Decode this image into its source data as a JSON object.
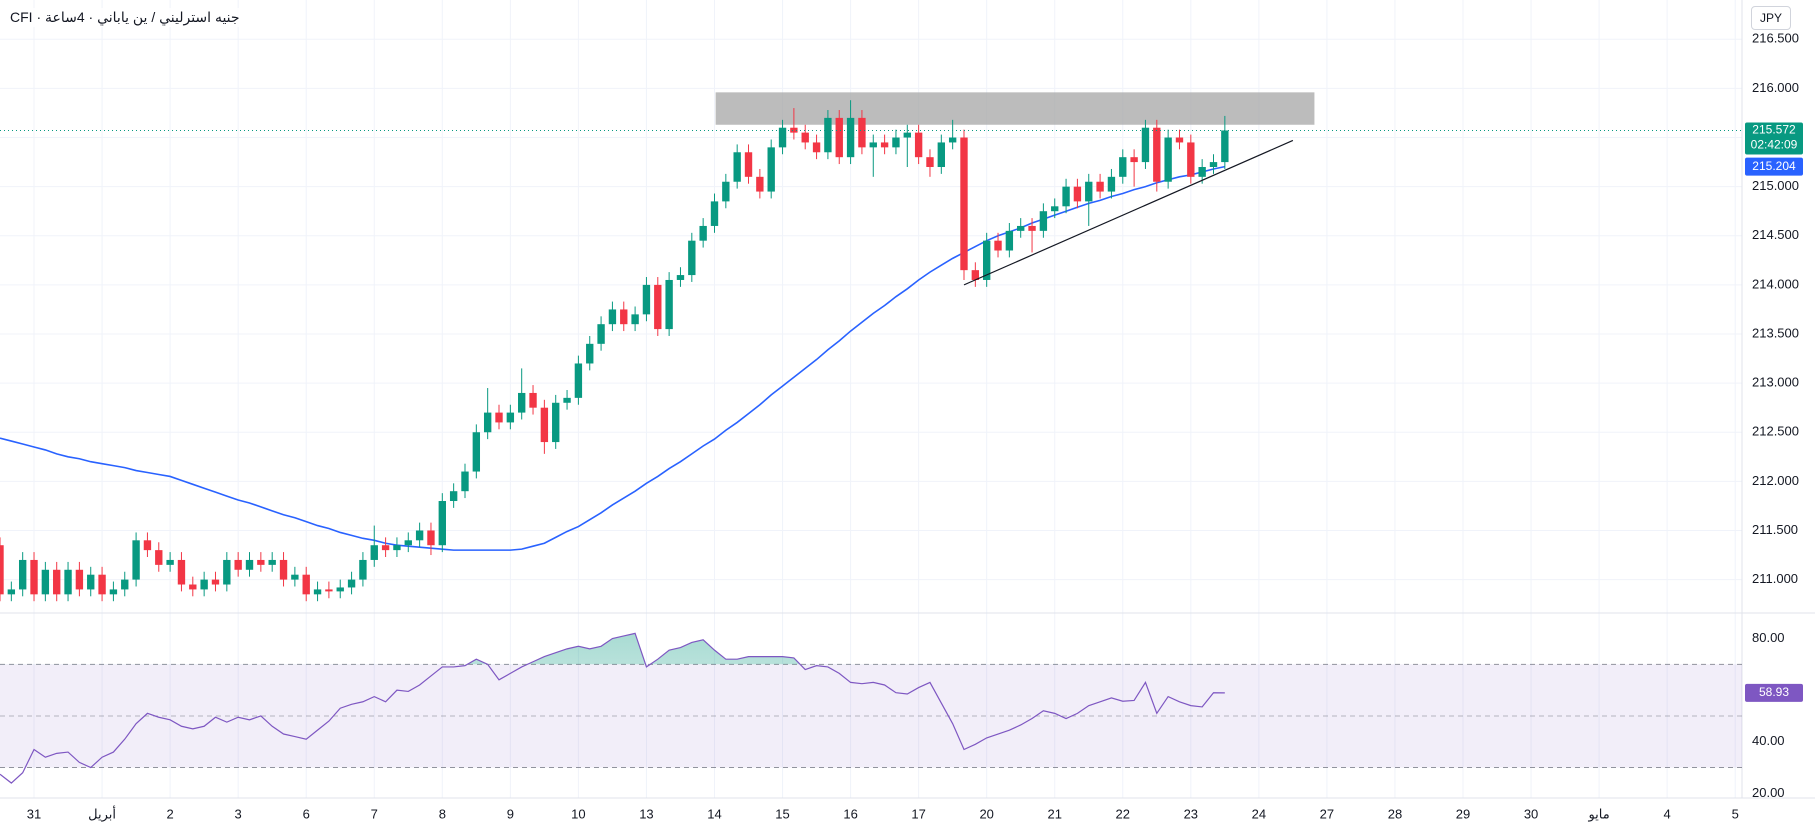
{
  "chart_data": {
    "type": "candlestick",
    "title": "جنيه استرليني / ين ياباني · 4ساعة · CFI",
    "currency": "JPY",
    "countdown": "02:42:09",
    "colors": {
      "up": "#089981",
      "down": "#f23645"
    },
    "grid": true,
    "xlim": [
      0,
      153.6
    ],
    "ylim": [
      210.66,
      216.9
    ],
    "yticks": [
      {
        "value": 211,
        "label": "211.000"
      },
      {
        "value": 211.5,
        "label": "211.500"
      },
      {
        "value": 212,
        "label": "212.000"
      },
      {
        "value": 212.5,
        "label": "212.500"
      },
      {
        "value": 213,
        "label": "213.000"
      },
      {
        "value": 213.5,
        "label": "213.500"
      },
      {
        "value": 214,
        "label": "214.000"
      },
      {
        "value": 214.5,
        "label": "214.500"
      },
      {
        "value": 215,
        "label": "215.000"
      },
      {
        "value": 215.5,
        "label": "215.500"
      },
      {
        "value": 216,
        "label": "216.000"
      },
      {
        "value": 216.5,
        "label": "216.500"
      }
    ],
    "xticks": [
      {
        "value": 3,
        "label": "31"
      },
      {
        "value": 9,
        "label": "أبريل"
      },
      {
        "value": 15,
        "label": "2"
      },
      {
        "value": 21,
        "label": "3"
      },
      {
        "value": 27,
        "label": "6"
      },
      {
        "value": 33,
        "label": "7"
      },
      {
        "value": 39,
        "label": "8"
      },
      {
        "value": 45,
        "label": "9"
      },
      {
        "value": 51,
        "label": "10"
      },
      {
        "value": 57,
        "label": "13"
      },
      {
        "value": 63,
        "label": "14"
      },
      {
        "value": 69,
        "label": "15"
      },
      {
        "value": 75,
        "label": "16"
      },
      {
        "value": 81,
        "label": "17"
      },
      {
        "value": 87,
        "label": "20"
      },
      {
        "value": 93,
        "label": "21"
      },
      {
        "value": 99,
        "label": "22"
      },
      {
        "value": 105,
        "label": "23"
      },
      {
        "value": 111,
        "label": "24"
      },
      {
        "value": 117,
        "label": "27"
      },
      {
        "value": 123,
        "label": "28"
      },
      {
        "value": 129,
        "label": "29"
      },
      {
        "value": 135,
        "label": "30"
      },
      {
        "value": 141,
        "label": "مايو"
      },
      {
        "value": 147,
        "label": "4"
      },
      {
        "value": 153,
        "label": "5"
      }
    ],
    "x": [
      0,
      1,
      2,
      3,
      4,
      5,
      6,
      7,
      8,
      9,
      10,
      11,
      12,
      13,
      14,
      15,
      16,
      17,
      18,
      19,
      20,
      21,
      22,
      23,
      24,
      25,
      26,
      27,
      28,
      29,
      30,
      31,
      32,
      33,
      34,
      35,
      36,
      37,
      38,
      39,
      40,
      41,
      42,
      43,
      44,
      45,
      46,
      47,
      48,
      49,
      50,
      51,
      52,
      53,
      54,
      55,
      56,
      57,
      58,
      59,
      60,
      61,
      62,
      63,
      64,
      65,
      66,
      67,
      68,
      69,
      70,
      71,
      72,
      73,
      74,
      75,
      76,
      77,
      78,
      79,
      80,
      81,
      82,
      83,
      84,
      85,
      86,
      87,
      88,
      89,
      90,
      91,
      92,
      93,
      94,
      95,
      96,
      97,
      98,
      99,
      100,
      101,
      102,
      103,
      104,
      105,
      106,
      107,
      108
    ],
    "open": [
      211.35,
      210.85,
      210.9,
      211.2,
      210.85,
      211.1,
      210.85,
      211.1,
      210.9,
      211.05,
      210.85,
      210.9,
      211.0,
      211.4,
      211.3,
      211.15,
      211.2,
      210.95,
      210.9,
      211.0,
      210.95,
      211.2,
      211.1,
      211.2,
      211.15,
      211.2,
      211.0,
      211.05,
      210.85,
      210.9,
      210.88,
      210.92,
      211.0,
      211.2,
      211.35,
      211.3,
      211.35,
      211.4,
      211.5,
      211.35,
      211.8,
      211.9,
      212.1,
      212.5,
      212.7,
      212.6,
      212.7,
      212.9,
      212.75,
      212.4,
      212.8,
      212.85,
      213.2,
      213.4,
      213.6,
      213.75,
      213.6,
      213.7,
      214.0,
      213.55,
      214.05,
      214.1,
      214.45,
      214.6,
      214.85,
      215.05,
      215.35,
      215.1,
      214.95,
      215.4,
      215.6,
      215.55,
      215.45,
      215.35,
      215.7,
      215.3,
      215.7,
      215.4,
      215.45,
      215.4,
      215.5,
      215.55,
      215.3,
      215.2,
      215.45,
      215.5,
      214.15,
      214.05,
      214.45,
      214.35,
      214.55,
      214.6,
      214.55,
      214.75,
      214.8,
      215.0,
      214.85,
      215.05,
      214.95,
      215.1,
      215.3,
      215.25,
      215.6,
      215.05,
      215.5,
      215.45,
      215.1,
      215.2,
      215.25
    ],
    "high": [
      211.43,
      210.98,
      211.28,
      211.28,
      211.18,
      211.18,
      211.18,
      211.18,
      211.13,
      211.13,
      210.98,
      211.08,
      211.48,
      211.48,
      211.38,
      211.28,
      211.28,
      211.03,
      211.08,
      211.08,
      211.28,
      211.28,
      211.28,
      211.28,
      211.28,
      211.28,
      211.13,
      211.13,
      210.98,
      210.98,
      211.0,
      211.08,
      211.28,
      211.55,
      211.43,
      211.43,
      211.48,
      211.58,
      211.58,
      211.88,
      211.98,
      212.18,
      212.58,
      212.95,
      212.78,
      212.78,
      213.15,
      212.98,
      212.83,
      212.88,
      212.93,
      213.28,
      213.48,
      213.68,
      213.83,
      213.83,
      213.78,
      214.08,
      214.08,
      214.13,
      214.18,
      214.53,
      214.68,
      214.93,
      215.13,
      215.43,
      215.43,
      215.18,
      215.48,
      215.68,
      215.8,
      215.63,
      215.53,
      215.78,
      215.78,
      215.88,
      215.78,
      215.53,
      215.53,
      215.58,
      215.63,
      215.63,
      215.38,
      215.53,
      215.68,
      215.58,
      214.23,
      214.53,
      214.53,
      214.63,
      214.68,
      214.68,
      214.83,
      214.88,
      215.08,
      215.08,
      215.13,
      215.13,
      215.18,
      215.38,
      215.38,
      215.68,
      215.68,
      215.58,
      215.58,
      215.53,
      215.28,
      215.33,
      215.72
    ],
    "low": [
      210.78,
      210.78,
      210.83,
      210.78,
      210.78,
      210.78,
      210.78,
      210.83,
      210.83,
      210.78,
      210.78,
      210.83,
      210.93,
      211.23,
      211.08,
      211.08,
      210.88,
      210.83,
      210.83,
      210.88,
      210.88,
      211.03,
      211.03,
      211.08,
      211.08,
      210.93,
      210.93,
      210.78,
      210.78,
      210.81,
      210.81,
      210.85,
      210.93,
      211.13,
      211.23,
      211.23,
      211.28,
      211.33,
      211.25,
      211.28,
      211.73,
      211.83,
      212.03,
      212.43,
      212.53,
      212.53,
      212.63,
      212.68,
      212.28,
      212.33,
      212.73,
      212.78,
      213.13,
      213.33,
      213.53,
      213.53,
      213.53,
      213.63,
      213.48,
      213.48,
      213.98,
      214.03,
      214.38,
      214.53,
      214.78,
      214.98,
      215.03,
      214.88,
      214.88,
      215.33,
      215.48,
      215.38,
      215.28,
      215.28,
      215.23,
      215.23,
      215.33,
      215.1,
      215.33,
      215.33,
      215.2,
      215.23,
      215.1,
      215.13,
      215.38,
      214.05,
      213.98,
      213.98,
      214.28,
      214.28,
      214.48,
      214.33,
      214.48,
      214.68,
      214.73,
      214.78,
      214.6,
      214.88,
      214.88,
      215.03,
      215.0,
      215.18,
      214.95,
      214.98,
      215.38,
      215.03,
      215.03,
      215.13,
      215.18
    ],
    "close": [
      210.85,
      210.9,
      211.2,
      210.85,
      211.1,
      210.85,
      211.1,
      210.9,
      211.05,
      210.85,
      210.9,
      211.0,
      211.4,
      211.3,
      211.15,
      211.2,
      210.95,
      210.9,
      211.0,
      210.95,
      211.2,
      211.1,
      211.2,
      211.15,
      211.2,
      211.0,
      211.05,
      210.85,
      210.9,
      210.88,
      210.92,
      211.0,
      211.2,
      211.35,
      211.3,
      211.35,
      211.4,
      211.5,
      211.35,
      211.8,
      211.9,
      212.1,
      212.5,
      212.7,
      212.6,
      212.7,
      212.9,
      212.75,
      212.4,
      212.8,
      212.85,
      213.2,
      213.4,
      213.6,
      213.75,
      213.6,
      213.7,
      214.0,
      213.55,
      214.05,
      214.1,
      214.45,
      214.6,
      214.85,
      215.05,
      215.35,
      215.1,
      214.95,
      215.4,
      215.6,
      215.55,
      215.45,
      215.35,
      215.7,
      215.3,
      215.7,
      215.4,
      215.45,
      215.4,
      215.5,
      215.55,
      215.3,
      215.2,
      215.45,
      215.5,
      214.15,
      214.05,
      214.45,
      214.35,
      214.55,
      214.6,
      214.55,
      214.75,
      214.8,
      215.0,
      214.85,
      215.05,
      214.95,
      215.1,
      215.3,
      215.25,
      215.6,
      215.05,
      215.5,
      215.45,
      215.1,
      215.2,
      215.25,
      215.572
    ],
    "ma": {
      "color": "#2962ff",
      "values": [
        212.44,
        212.41,
        212.38,
        212.35,
        212.32,
        212.28,
        212.25,
        212.23,
        212.2,
        212.18,
        212.16,
        212.14,
        212.11,
        212.09,
        212.07,
        212.05,
        212.01,
        211.97,
        211.93,
        211.89,
        211.85,
        211.81,
        211.78,
        211.74,
        211.7,
        211.66,
        211.63,
        211.59,
        211.55,
        211.52,
        211.48,
        211.45,
        211.42,
        211.4,
        211.37,
        211.35,
        211.34,
        211.33,
        211.32,
        211.31,
        211.3,
        211.3,
        211.3,
        211.3,
        211.3,
        211.3,
        211.31,
        211.34,
        211.37,
        211.43,
        211.49,
        211.54,
        211.61,
        211.68,
        211.76,
        211.83,
        211.9,
        211.98,
        212.05,
        212.13,
        212.2,
        212.28,
        212.36,
        212.43,
        212.52,
        212.6,
        212.69,
        212.78,
        212.88,
        212.97,
        213.06,
        213.15,
        213.24,
        213.34,
        213.43,
        213.53,
        213.62,
        213.71,
        213.79,
        213.88,
        213.96,
        214.05,
        214.13,
        214.2,
        214.27,
        214.33,
        214.39,
        214.45,
        214.5,
        214.54,
        214.58,
        214.63,
        214.67,
        214.71,
        214.75,
        214.79,
        214.83,
        214.86,
        214.9,
        214.93,
        214.97,
        215.0,
        215.04,
        215.07,
        215.1,
        215.12,
        215.15,
        215.18,
        215.204
      ]
    },
    "zone": {
      "color": "#a6a6a6",
      "x": [
        63.1,
        115.9
      ],
      "y": [
        215.63,
        215.96
      ]
    },
    "trendline": {
      "color": "#131722",
      "x": [
        85,
        114
      ],
      "y": [
        214.0,
        215.47
      ]
    },
    "rsi": {
      "color": "#7e57c2",
      "ylim": [
        18.2,
        89.9
      ],
      "yticks": [
        {
          "value": 20,
          "label": "20.00"
        },
        {
          "value": 40,
          "label": "40.00"
        },
        {
          "value": 80,
          "label": "80.00"
        }
      ],
      "bands": [
        30,
        50,
        70
      ],
      "values": [
        27.4,
        24,
        28,
        37,
        34,
        35.5,
        36,
        32,
        30,
        34,
        36,
        41,
        47,
        51,
        49.5,
        48.5,
        46,
        45,
        46,
        49.5,
        47.6,
        49.5,
        48.5,
        50,
        46,
        43,
        42,
        41,
        44.5,
        48,
        53,
        54.5,
        55.5,
        57.5,
        55.5,
        60,
        59.5,
        62,
        65.5,
        69,
        69,
        69.5,
        72,
        70,
        64,
        66.5,
        69,
        71,
        73,
        74.5,
        76,
        77,
        76,
        77,
        80,
        81,
        82,
        69,
        72,
        75.5,
        76.5,
        78.5,
        79.5,
        75.5,
        72,
        72,
        73,
        73,
        73,
        73,
        72.5,
        68,
        69.5,
        69,
        66.5,
        63,
        62.5,
        63,
        62,
        59,
        58.5,
        61,
        63,
        55,
        47,
        37,
        39,
        41.5,
        43,
        44.5,
        46.5,
        49,
        52,
        51,
        49,
        51,
        54,
        55.5,
        57,
        55.7,
        56,
        63,
        51,
        57.5,
        55.5,
        54,
        53.5,
        59,
        58.93
      ]
    }
  }
}
